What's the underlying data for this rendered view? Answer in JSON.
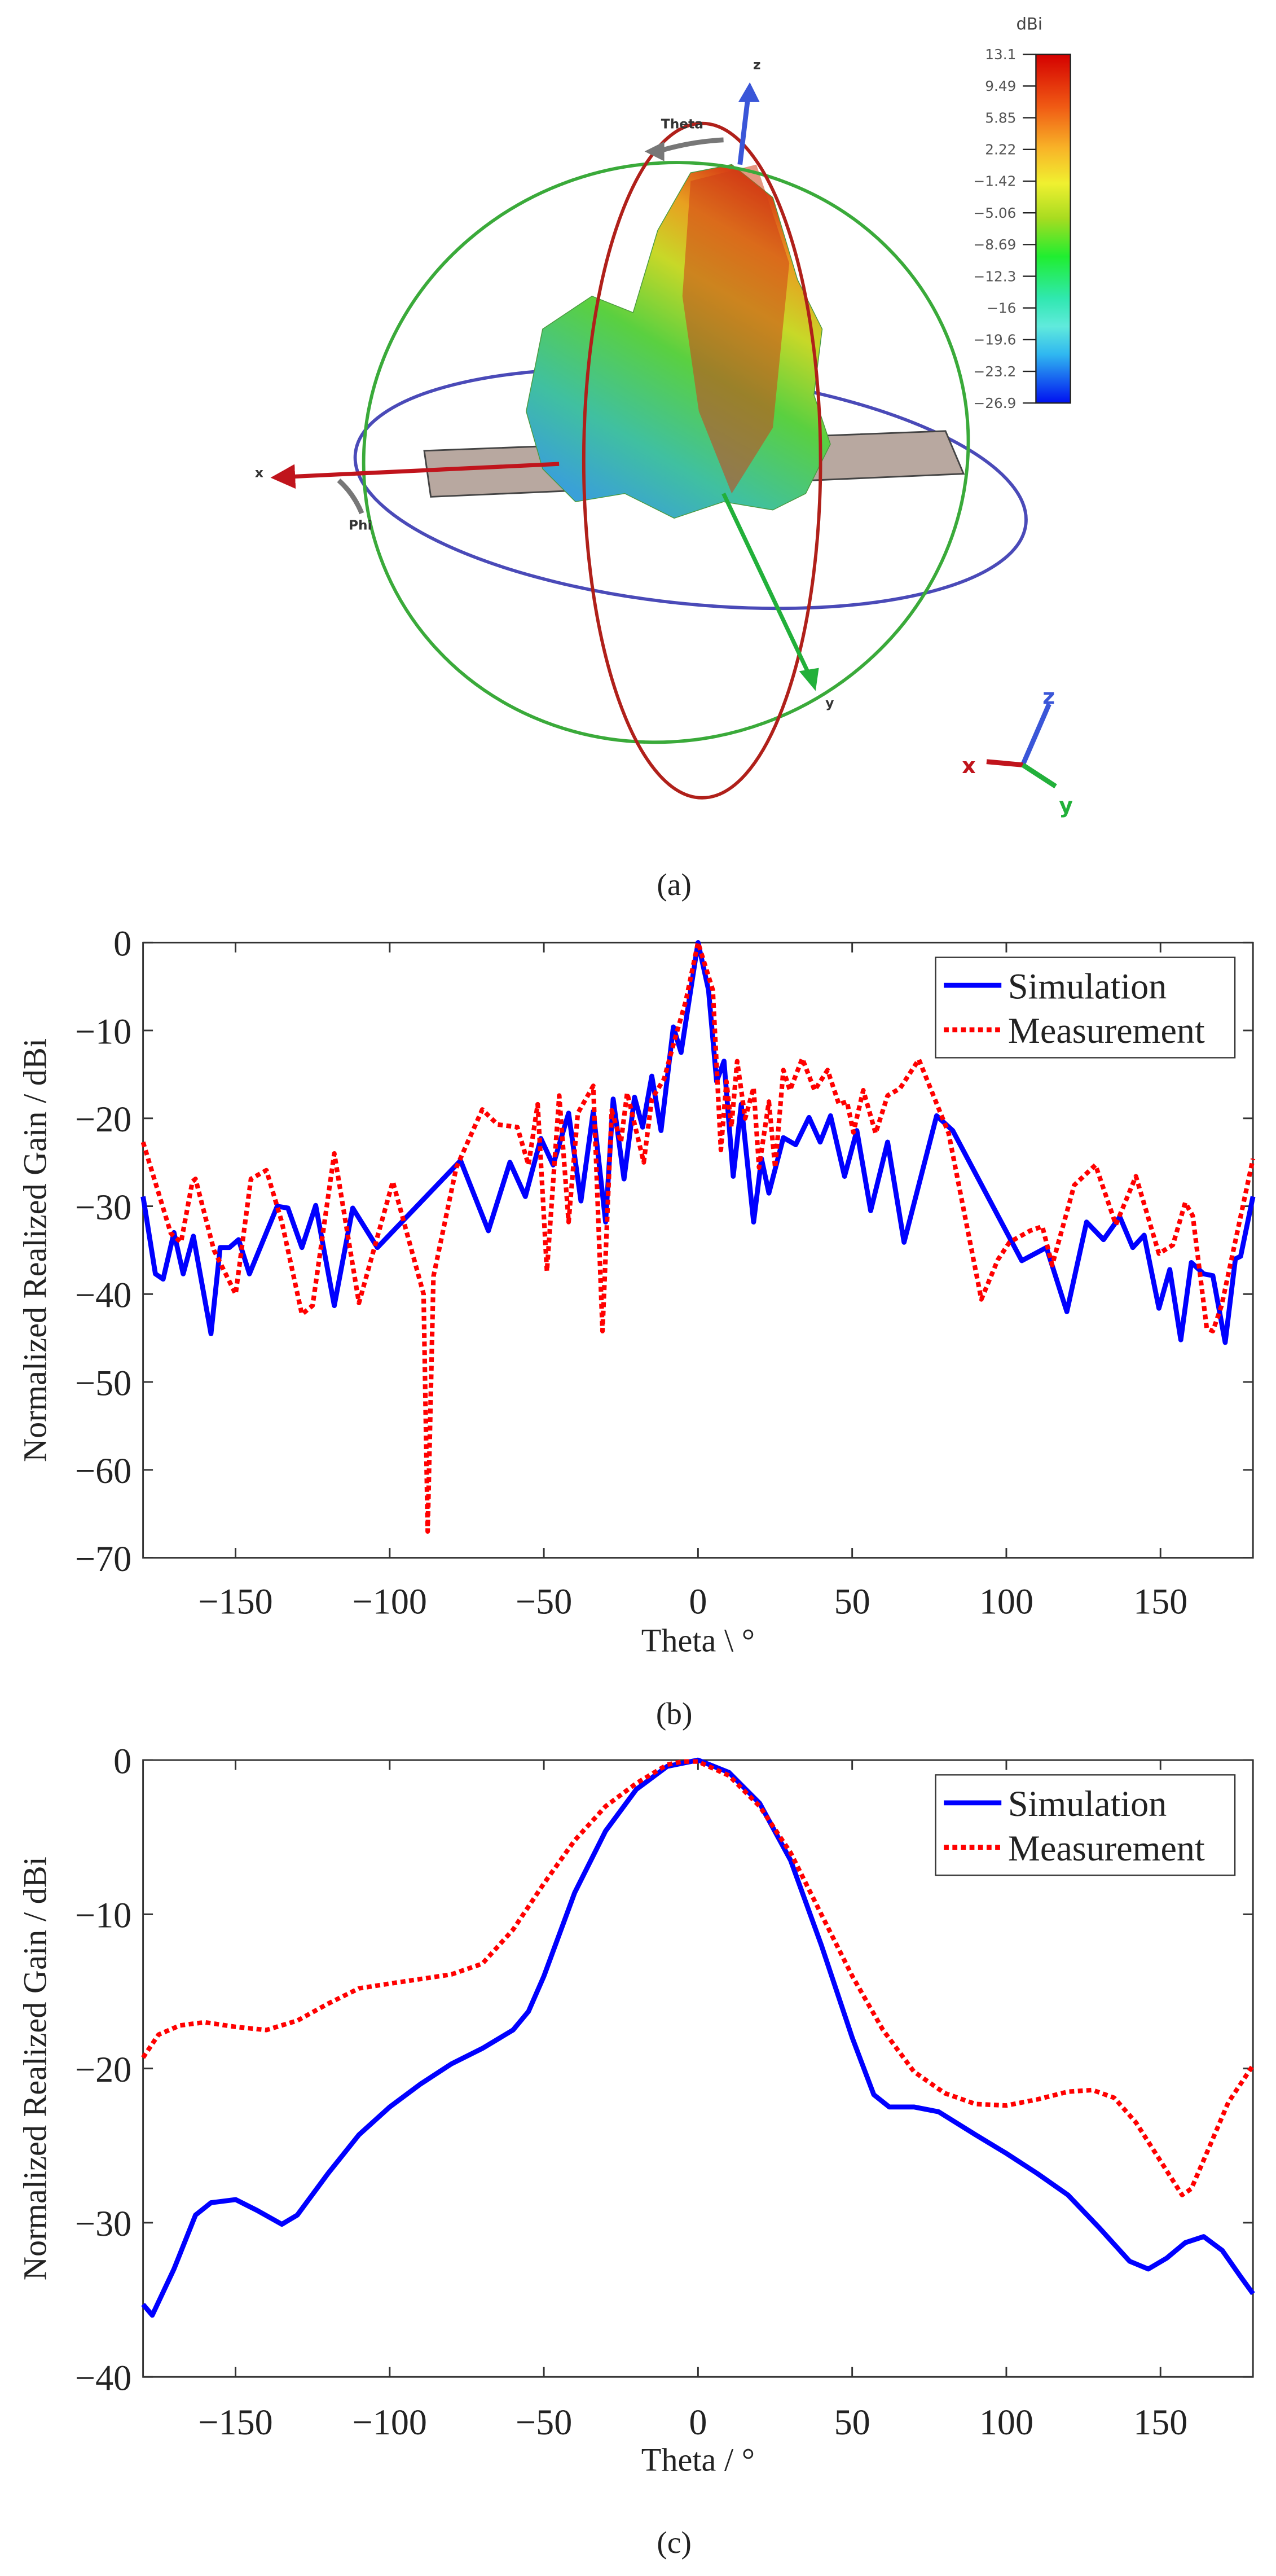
{
  "panel_a": {
    "caption": "(a)",
    "colorbar": {
      "unit": "dBi",
      "ticks": [
        "13.1",
        "9.49",
        "5.85",
        "2.22",
        "−1.42",
        "−5.06",
        "−8.69",
        "−12.3",
        "−16",
        "−19.6",
        "−23.2",
        "−26.9"
      ],
      "range": [
        -26.9,
        13.1
      ]
    },
    "axis_labels": {
      "z": "z",
      "x": "x",
      "y": "y",
      "theta": "Theta",
      "phi": "Phi"
    },
    "triad": {
      "z": "z",
      "x": "x",
      "y": "y"
    },
    "colors": {
      "x_axis": "#c0141c",
      "y_axis": "#22b03a",
      "z_axis": "#3a56d8",
      "theta_ring": "#b0201a",
      "phi_ring": "#4a4ab8",
      "green_ring": "#3aaa3a"
    }
  },
  "chart_data": [
    {
      "id": "b",
      "type": "line",
      "caption": "(b)",
      "xlabel": "Theta \\ °",
      "ylabel": "Normalized Realized Gain / dBi",
      "xlim": [
        -180,
        180
      ],
      "ylim": [
        -70,
        0
      ],
      "xticks": [
        -150,
        -100,
        -50,
        0,
        50,
        100,
        150
      ],
      "xtick_labels": [
        "−150",
        "−100",
        "−50",
        "0",
        "50",
        "100",
        "150"
      ],
      "yticks": [
        0,
        -10,
        -20,
        -30,
        -40,
        -50,
        -60,
        -70
      ],
      "ytick_labels": [
        "0",
        "−10",
        "−20",
        "−30",
        "−40",
        "−50",
        "−60",
        "−70"
      ],
      "legend": {
        "placement": "top-right",
        "entries": [
          "Simulation",
          "Measurement"
        ]
      },
      "series": [
        {
          "name": "Simulation",
          "color": "#0000ff",
          "style": "solid",
          "points": [
            [
              -180,
              -28.9
            ],
            [
              -176,
              -37.7
            ],
            [
              -173.5,
              -38.3
            ],
            [
              -170,
              -33
            ],
            [
              -167,
              -37.7
            ],
            [
              -163.7,
              -33.4
            ],
            [
              -158,
              -44.5
            ],
            [
              -155,
              -34.7
            ],
            [
              -152,
              -34.7
            ],
            [
              -149,
              -33.8
            ],
            [
              -145.5,
              -37.7
            ],
            [
              -136.5,
              -30
            ],
            [
              -133,
              -30.2
            ],
            [
              -128.5,
              -34.7
            ],
            [
              -124,
              -29.9
            ],
            [
              -118,
              -41.3
            ],
            [
              -112,
              -30.2
            ],
            [
              -104,
              -34.7
            ],
            [
              -77,
              -24.8
            ],
            [
              -68,
              -32.8
            ],
            [
              -61,
              -25
            ],
            [
              -56,
              -28.9
            ],
            [
              -51,
              -22.3
            ],
            [
              -47,
              -25.3
            ],
            [
              -42,
              -19.4
            ],
            [
              -38,
              -29.4
            ],
            [
              -34,
              -19.2
            ],
            [
              -30,
              -31.8
            ],
            [
              -27.5,
              -17.8
            ],
            [
              -24,
              -26.9
            ],
            [
              -20.6,
              -17.6
            ],
            [
              -18,
              -21
            ],
            [
              -15,
              -15.2
            ],
            [
              -12,
              -21.4
            ],
            [
              -8,
              -9.6
            ],
            [
              -5.5,
              -12.5
            ],
            [
              0,
              0
            ],
            [
              3.4,
              -5.4
            ],
            [
              6,
              -15.8
            ],
            [
              8.4,
              -13.5
            ],
            [
              11.4,
              -26.6
            ],
            [
              14,
              -18.4
            ],
            [
              18,
              -31.8
            ],
            [
              20.6,
              -24.6
            ],
            [
              23,
              -28.5
            ],
            [
              27.7,
              -22.2
            ],
            [
              31.7,
              -23
            ],
            [
              36,
              -19.9
            ],
            [
              39.6,
              -22.7
            ],
            [
              43,
              -19.7
            ],
            [
              47.5,
              -26.6
            ],
            [
              51.5,
              -21.4
            ],
            [
              56,
              -30.5
            ],
            [
              61.5,
              -22.7
            ],
            [
              66.8,
              -34.1
            ],
            [
              77.4,
              -19.7
            ],
            [
              82.6,
              -21.4
            ],
            [
              105,
              -36.2
            ],
            [
              113,
              -34.7
            ],
            [
              119.6,
              -42
            ],
            [
              126,
              -31.8
            ],
            [
              131.5,
              -33.8
            ],
            [
              136.8,
              -31.2
            ],
            [
              141,
              -34.7
            ],
            [
              144.7,
              -33.3
            ],
            [
              149.5,
              -41.6
            ],
            [
              153,
              -37.2
            ],
            [
              156.6,
              -45.2
            ],
            [
              160,
              -36.4
            ],
            [
              164,
              -37.7
            ],
            [
              167,
              -37.9
            ],
            [
              171,
              -45.5
            ],
            [
              174.3,
              -36
            ],
            [
              176,
              -35.7
            ],
            [
              180,
              -28.9
            ]
          ]
        },
        {
          "name": "Measurement",
          "color": "#ff0000",
          "style": "dotted",
          "points": [
            [
              -180,
              -22.7
            ],
            [
              -171,
              -33.1
            ],
            [
              -167.7,
              -34.1
            ],
            [
              -164,
              -27.2
            ],
            [
              -163,
              -26.9
            ],
            [
              -157,
              -35
            ],
            [
              -150,
              -40
            ],
            [
              -145,
              -26.9
            ],
            [
              -140,
              -25.9
            ],
            [
              -135,
              -31.8
            ],
            [
              -128.5,
              -42.3
            ],
            [
              -125,
              -41.3
            ],
            [
              -118,
              -24
            ],
            [
              -110,
              -41
            ],
            [
              -99,
              -27.2
            ],
            [
              -89,
              -40
            ],
            [
              -87.7,
              -67
            ],
            [
              -85.8,
              -38
            ],
            [
              -78.4,
              -25.6
            ],
            [
              -70,
              -19
            ],
            [
              -65,
              -20.7
            ],
            [
              -58.6,
              -21
            ],
            [
              -55,
              -25.3
            ],
            [
              -52,
              -18.4
            ],
            [
              -49,
              -37.4
            ],
            [
              -45,
              -17.4
            ],
            [
              -42,
              -31.8
            ],
            [
              -39,
              -19.4
            ],
            [
              -34,
              -16.3
            ],
            [
              -31,
              -44.2
            ],
            [
              -28,
              -19.1
            ],
            [
              -25,
              -22.7
            ],
            [
              -23,
              -17.1
            ],
            [
              -17.6,
              -25
            ],
            [
              -15,
              -17.8
            ],
            [
              -11,
              -15.5
            ],
            [
              -7.7,
              -11.2
            ],
            [
              -4,
              -6.7
            ],
            [
              0,
              0
            ],
            [
              4.8,
              -5.4
            ],
            [
              7.4,
              -23.6
            ],
            [
              9.2,
              -15.8
            ],
            [
              10.8,
              -21
            ],
            [
              12.7,
              -13.5
            ],
            [
              15.3,
              -20
            ],
            [
              18,
              -16.5
            ],
            [
              19.8,
              -25.6
            ],
            [
              23,
              -18.1
            ],
            [
              25,
              -25.6
            ],
            [
              27.7,
              -14.5
            ],
            [
              29.8,
              -16.8
            ],
            [
              33.8,
              -13.2
            ],
            [
              37.8,
              -16.8
            ],
            [
              42,
              -14.5
            ],
            [
              45.7,
              -18.4
            ],
            [
              48.3,
              -18.1
            ],
            [
              50.4,
              -21.6
            ],
            [
              53.6,
              -16.8
            ],
            [
              57.6,
              -21.7
            ],
            [
              61.5,
              -17.4
            ],
            [
              65.5,
              -16.6
            ],
            [
              71.6,
              -13.3
            ],
            [
              81.3,
              -21.7
            ],
            [
              91.9,
              -40.6
            ],
            [
              97.2,
              -36.1
            ],
            [
              101,
              -34.1
            ],
            [
              107.7,
              -32.8
            ],
            [
              111.7,
              -32.3
            ],
            [
              114.9,
              -36.7
            ],
            [
              122,
              -27.6
            ],
            [
              128.9,
              -25.3
            ],
            [
              135.5,
              -32.1
            ],
            [
              142,
              -26.6
            ],
            [
              149.5,
              -35.4
            ],
            [
              154,
              -34.4
            ],
            [
              158,
              -29.6
            ],
            [
              160.5,
              -31.1
            ],
            [
              165,
              -43.9
            ],
            [
              167,
              -44.2
            ],
            [
              169.8,
              -41.3
            ],
            [
              180,
              -24.6
            ]
          ]
        }
      ]
    },
    {
      "id": "c",
      "type": "line",
      "caption": "(c)",
      "xlabel": "Theta / °",
      "ylabel": "Normalized Realized Gain / dBi",
      "xlim": [
        -180,
        180
      ],
      "ylim": [
        -40,
        0
      ],
      "xticks": [
        -150,
        -100,
        -50,
        0,
        50,
        100,
        150
      ],
      "xtick_labels": [
        "−150",
        "−100",
        "−50",
        "0",
        "50",
        "100",
        "150"
      ],
      "yticks": [
        0,
        -10,
        -20,
        -30,
        -40
      ],
      "ytick_labels": [
        "0",
        "−10",
        "−20",
        "−30",
        "−40"
      ],
      "legend": {
        "placement": "top-right",
        "entries": [
          "Simulation",
          "Measurement"
        ]
      },
      "series": [
        {
          "name": "Simulation",
          "color": "#0000ff",
          "style": "solid",
          "points": [
            [
              -180,
              -35.3
            ],
            [
              -177,
              -36
            ],
            [
              -170,
              -33
            ],
            [
              -163,
              -29.5
            ],
            [
              -158,
              -28.7
            ],
            [
              -150,
              -28.5
            ],
            [
              -143,
              -29.2
            ],
            [
              -135,
              -30.1
            ],
            [
              -130,
              -29.5
            ],
            [
              -120,
              -26.8
            ],
            [
              -110,
              -24.3
            ],
            [
              -100,
              -22.5
            ],
            [
              -90,
              -21
            ],
            [
              -80,
              -19.7
            ],
            [
              -70,
              -18.7
            ],
            [
              -60,
              -17.5
            ],
            [
              -55,
              -16.3
            ],
            [
              -50,
              -14
            ],
            [
              -40,
              -8.6
            ],
            [
              -30,
              -4.6
            ],
            [
              -20,
              -1.9
            ],
            [
              -10,
              -0.4
            ],
            [
              0,
              0
            ],
            [
              10,
              -0.8
            ],
            [
              20,
              -2.8
            ],
            [
              30,
              -6.5
            ],
            [
              40,
              -12
            ],
            [
              50,
              -18
            ],
            [
              57,
              -21.7
            ],
            [
              62,
              -22.5
            ],
            [
              70,
              -22.5
            ],
            [
              78,
              -22.8
            ],
            [
              90,
              -24.3
            ],
            [
              100,
              -25.5
            ],
            [
              110,
              -26.8
            ],
            [
              120,
              -28.2
            ],
            [
              130,
              -30.3
            ],
            [
              140,
              -32.5
            ],
            [
              146,
              -33
            ],
            [
              152,
              -32.3
            ],
            [
              158,
              -31.3
            ],
            [
              164,
              -30.9
            ],
            [
              170,
              -31.8
            ],
            [
              176,
              -33.5
            ],
            [
              180,
              -34.6
            ]
          ]
        },
        {
          "name": "Measurement",
          "color": "#ff0000",
          "style": "dotted",
          "points": [
            [
              -180,
              -19.3
            ],
            [
              -175,
              -17.8
            ],
            [
              -168,
              -17.2
            ],
            [
              -160,
              -17
            ],
            [
              -150,
              -17.3
            ],
            [
              -140,
              -17.5
            ],
            [
              -130,
              -16.9
            ],
            [
              -120,
              -15.8
            ],
            [
              -110,
              -14.8
            ],
            [
              -100,
              -14.5
            ],
            [
              -90,
              -14.2
            ],
            [
              -80,
              -13.9
            ],
            [
              -70,
              -13.2
            ],
            [
              -60,
              -11
            ],
            [
              -50,
              -8
            ],
            [
              -40,
              -5.2
            ],
            [
              -30,
              -3
            ],
            [
              -20,
              -1.5
            ],
            [
              -10,
              -0.3
            ],
            [
              -5,
              -0.1
            ],
            [
              0,
              -0.1
            ],
            [
              10,
              -1
            ],
            [
              20,
              -3
            ],
            [
              30,
              -6
            ],
            [
              40,
              -10
            ],
            [
              50,
              -14
            ],
            [
              60,
              -17.5
            ],
            [
              70,
              -20.2
            ],
            [
              80,
              -21.6
            ],
            [
              90,
              -22.3
            ],
            [
              100,
              -22.4
            ],
            [
              110,
              -22
            ],
            [
              120,
              -21.5
            ],
            [
              128,
              -21.4
            ],
            [
              135,
              -21.9
            ],
            [
              142,
              -23.5
            ],
            [
              150,
              -26
            ],
            [
              157,
              -28.2
            ],
            [
              160,
              -27.8
            ],
            [
              166,
              -25
            ],
            [
              172,
              -22.2
            ],
            [
              180,
              -19.8
            ]
          ]
        }
      ]
    }
  ]
}
